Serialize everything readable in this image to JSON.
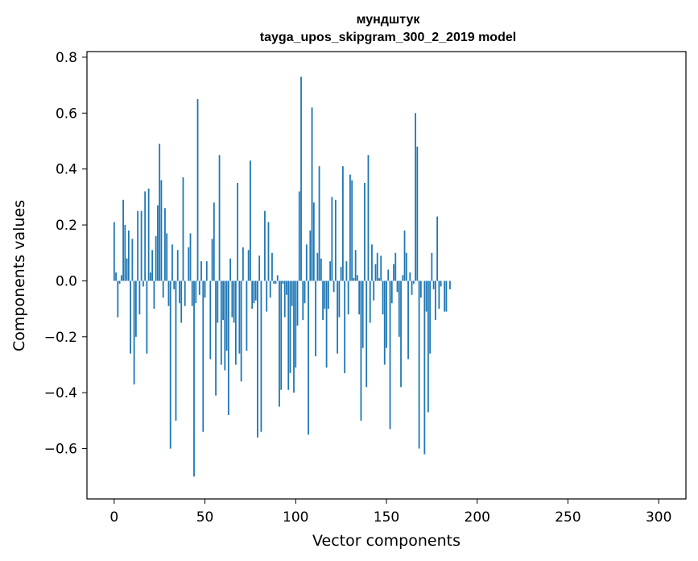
{
  "chart_data": {
    "type": "bar",
    "title": "мундштук",
    "subtitle": "tayga_upos_skipgram_300_2_2019 model",
    "xlabel": "Vector components",
    "ylabel": "Components values",
    "xlim": [
      -15,
      315
    ],
    "ylim": [
      -0.78,
      0.82
    ],
    "xticks": [
      0,
      50,
      100,
      150,
      200,
      250,
      300
    ],
    "xtick_labels": [
      "0",
      "50",
      "100",
      "150",
      "200",
      "250",
      "300"
    ],
    "yticks": [
      -0.6,
      -0.4,
      -0.2,
      0.0,
      0.2,
      0.4,
      0.6,
      0.8
    ],
    "ytick_labels": [
      "−0.6",
      "−0.4",
      "−0.2",
      "0.0",
      "0.2",
      "0.4",
      "0.6",
      "0.8"
    ],
    "bar_color": "#1f77b4",
    "values": [
      0.21,
      0.03,
      -0.13,
      -0.01,
      0.02,
      0.29,
      0.2,
      0.08,
      0.18,
      -0.26,
      0.15,
      -0.37,
      -0.2,
      0.25,
      -0.12,
      0.25,
      -0.02,
      0.32,
      -0.26,
      0.33,
      0.03,
      0.11,
      -0.1,
      0.16,
      0.27,
      0.49,
      0.36,
      -0.06,
      0.26,
      0.17,
      -0.09,
      -0.6,
      0.13,
      -0.03,
      -0.5,
      0.11,
      -0.08,
      -0.15,
      0.37,
      -0.09,
      0.0,
      0.12,
      0.17,
      -0.09,
      -0.7,
      -0.08,
      0.65,
      -0.05,
      0.07,
      -0.54,
      -0.06,
      0.07,
      0.0,
      -0.28,
      0.15,
      0.28,
      -0.41,
      -0.15,
      0.45,
      -0.3,
      -0.14,
      -0.32,
      -0.25,
      -0.48,
      0.08,
      -0.13,
      -0.15,
      -0.3,
      0.35,
      -0.26,
      -0.36,
      0.12,
      0.0,
      -0.25,
      0.11,
      0.43,
      -0.1,
      -0.08,
      -0.07,
      -0.56,
      0.09,
      -0.54,
      0.0,
      0.25,
      -0.11,
      0.21,
      -0.06,
      0.1,
      -0.01,
      -0.01,
      0.02,
      -0.45,
      -0.39,
      -0.01,
      -0.13,
      -0.05,
      -0.39,
      -0.33,
      -0.09,
      -0.4,
      -0.31,
      -0.16,
      0.32,
      0.73,
      -0.14,
      -0.08,
      0.13,
      -0.55,
      0.18,
      0.62,
      0.28,
      -0.27,
      0.1,
      0.41,
      0.08,
      -0.14,
      -0.1,
      -0.31,
      -0.1,
      0.07,
      0.3,
      -0.04,
      0.29,
      -0.26,
      -0.13,
      0.05,
      0.41,
      -0.33,
      0.07,
      -0.12,
      0.38,
      0.36,
      0.01,
      0.11,
      0.02,
      -0.12,
      -0.5,
      -0.24,
      0.35,
      -0.38,
      0.45,
      -0.15,
      0.13,
      -0.07,
      0.06,
      0.1,
      0.01,
      0.09,
      -0.12,
      -0.3,
      -0.24,
      0.04,
      -0.53,
      -0.08,
      0.06,
      0.1,
      -0.04,
      -0.2,
      -0.38,
      0.02,
      0.18,
      0.1,
      -0.28,
      0.03,
      -0.05,
      -0.01,
      0.6,
      0.48,
      -0.6,
      -0.06,
      0.0,
      -0.62,
      -0.11,
      -0.47,
      -0.26,
      0.1,
      -0.03,
      -0.14,
      0.23,
      -0.1,
      -0.02,
      0.0,
      -0.11,
      -0.11,
      0.0,
      -0.03,
      0.0,
      0.0,
      0.0,
      0.0,
      0.0,
      0.0,
      0.0,
      0.0,
      0.0,
      0.0,
      0.0,
      0.0,
      0.0,
      0.0,
      0.0,
      0.0,
      0.0,
      0.0,
      0.0,
      0.0,
      0.0,
      0.0,
      0.0,
      0.0,
      0.0,
      0.0,
      0.0,
      0.0,
      0.0,
      0.0,
      0.0,
      0.0,
      0.0,
      0.0,
      0.0,
      0.0,
      0.0,
      0.0,
      0.0,
      0.0,
      0.0,
      0.0,
      0.0,
      0.0,
      0.0,
      0.0,
      0.0,
      0.0,
      0.0,
      0.0,
      0.0,
      0.0,
      0.0,
      0.0,
      0.0,
      0.0,
      0.0,
      0.0,
      0.0,
      0.0,
      0.0,
      0.0,
      0.0,
      0.0,
      0.0,
      0.0,
      0.0,
      0.0,
      0.0,
      0.0,
      0.0,
      0.0,
      0.0,
      0.0,
      0.0,
      0.0,
      0.0,
      0.0,
      0.0,
      0.0,
      0.0,
      0.0,
      0.0,
      0.0,
      0.0,
      0.0,
      0.0,
      0.0,
      0.0,
      0.0,
      0.0,
      0.0,
      0.0,
      0.0,
      0.0,
      0.0,
      0.0,
      0.0,
      0.0,
      0.0,
      0.0,
      0.0,
      0.0,
      0.0,
      0.0,
      0.0,
      0.0,
      0.0,
      0.0,
      0.0,
      0.0,
      0.0
    ]
  }
}
